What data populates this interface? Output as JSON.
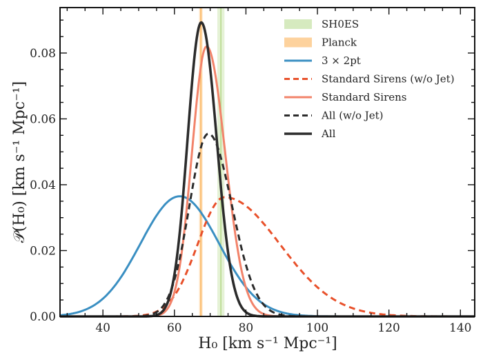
{
  "chart_data": {
    "type": "line",
    "title": "",
    "xlabel": "H₀ [km s⁻¹ Mpc⁻¹]",
    "ylabel": "𝒫(H₀) [km s⁻¹ Mpc⁻¹]",
    "xlim": [
      28,
      144
    ],
    "ylim": [
      0,
      0.0938
    ],
    "xticks": [
      40,
      60,
      80,
      100,
      120,
      140
    ],
    "xtick_labels": [
      "40",
      "60",
      "80",
      "100",
      "120",
      "140"
    ],
    "yticks": [
      0.0,
      0.02,
      0.04,
      0.06,
      0.08
    ],
    "ytick_labels": [
      "0.00",
      "0.02",
      "0.04",
      "0.06",
      "0.08"
    ],
    "grid": false,
    "legend_position": "top-right",
    "bands": [
      {
        "name": "SH0ES",
        "center": 73.0,
        "half_width": 1.0,
        "color": "#b5d98a"
      },
      {
        "name": "Planck",
        "center": 67.4,
        "half_width": 0.5,
        "color": "#fbb45c"
      }
    ],
    "series": [
      {
        "name": "3 × 2pt",
        "style": "solid",
        "color": "#3a8fc2",
        "shape": "gaussian",
        "mean": 61.5,
        "sigma": 11.0,
        "peak": 0.0365
      },
      {
        "name": "Standard Sirens (w/o Jet)",
        "style": "dashed",
        "color": "#e8502a",
        "shape": "skewed",
        "mode": 74.0,
        "sigma_left": 7.5,
        "sigma_right": 15.5,
        "peak": 0.0362
      },
      {
        "name": "Standard Sirens",
        "style": "solid",
        "color": "#f2836a",
        "shape": "skewed",
        "mode": 69.0,
        "sigma_left": 4.1,
        "sigma_right": 5.2,
        "peak": 0.082
      },
      {
        "name": "All (w/o Jet)",
        "style": "dashed",
        "color": "#2b2b2b",
        "shape": "skewed",
        "mode": 69.5,
        "sigma_left": 5.3,
        "sigma_right": 6.6,
        "peak": 0.0555
      },
      {
        "name": "All",
        "style": "solid",
        "color": "#2b2b2b",
        "shape": "skewed",
        "mode": 67.5,
        "sigma_left": 3.8,
        "sigma_right": 4.3,
        "peak": 0.0893
      }
    ]
  }
}
